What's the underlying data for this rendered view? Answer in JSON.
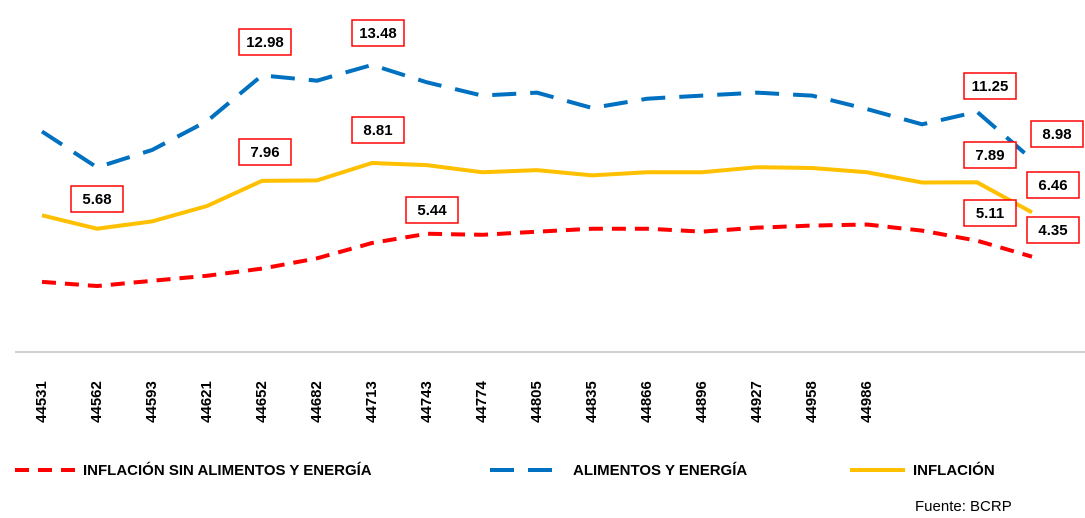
{
  "chart_data": {
    "type": "line",
    "categories": [
      "44531",
      "44562",
      "44593",
      "44621",
      "44652",
      "44682",
      "44713",
      "44743",
      "44774",
      "44805",
      "44835",
      "44866",
      "44896",
      "44927",
      "44958",
      "44986",
      null,
      null,
      null
    ],
    "series": [
      {
        "name": "INFLACIÓN SIN ALIMENTOS Y ENERGÍA",
        "color": "#ff0000",
        "dash": "dashed",
        "values": [
          3.15,
          2.95,
          3.2,
          3.44,
          3.78,
          4.27,
          5.0,
          5.44,
          5.39,
          5.54,
          5.68,
          5.68,
          5.54,
          5.73,
          5.83,
          5.88,
          5.59,
          5.11,
          4.35
        ]
      },
      {
        "name": "ALIMENTOS Y ENERGÍA",
        "color": "#0070c0",
        "dash": "long-dashed",
        "values": [
          10.31,
          8.6,
          9.43,
          10.8,
          12.98,
          12.73,
          13.48,
          12.65,
          12.02,
          12.16,
          11.43,
          11.87,
          12.02,
          12.16,
          12.02,
          11.38,
          10.65,
          11.25,
          8.98
        ]
      },
      {
        "name": "INFLACIÓN",
        "color": "#ffc000",
        "dash": "solid",
        "values": [
          6.32,
          5.68,
          6.03,
          6.76,
          7.96,
          7.98,
          8.81,
          8.71,
          8.37,
          8.47,
          8.22,
          8.37,
          8.37,
          8.61,
          8.57,
          8.37,
          7.88,
          7.89,
          6.46
        ]
      }
    ],
    "source": "Fuente: BCRP"
  }
}
